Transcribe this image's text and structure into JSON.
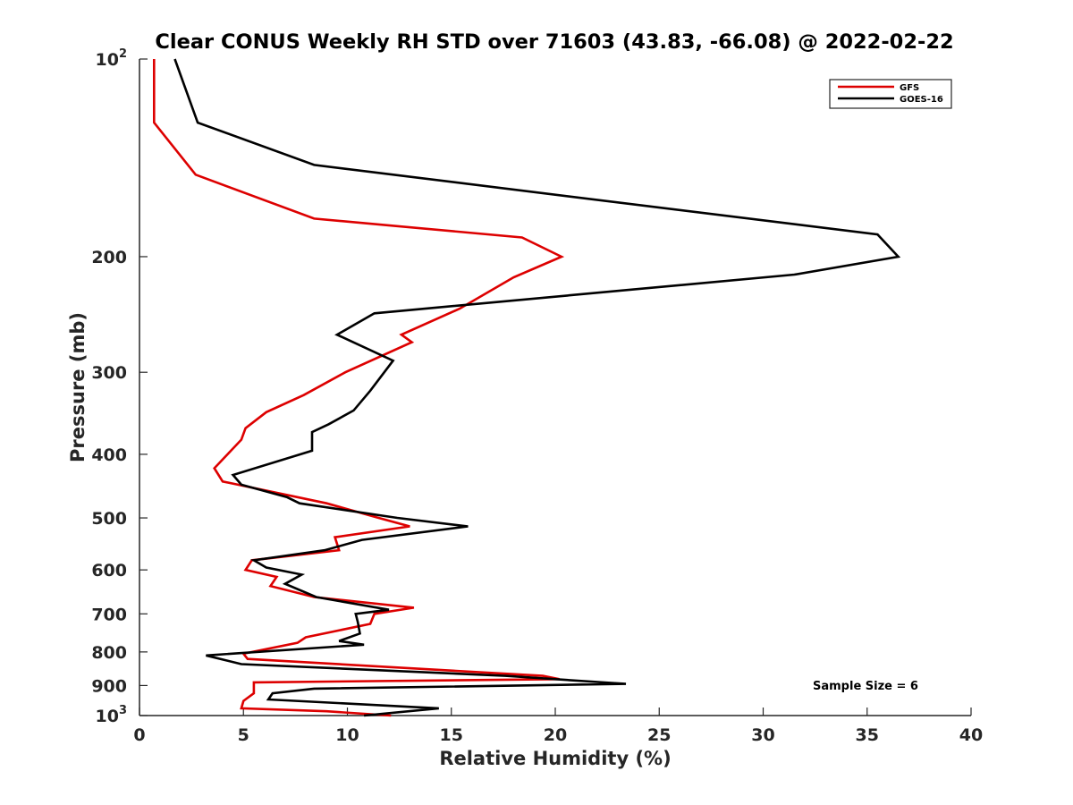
{
  "chart_data": {
    "type": "line",
    "title": "Clear CONUS Weekly RH STD over 71603 (43.83, -66.08) @ 2022-02-22",
    "xlabel": "Relative Humidity (%)",
    "ylabel": "Pressure (mb)",
    "xlim": [
      0,
      40
    ],
    "ylim": [
      100,
      1000
    ],
    "y_scale": "log",
    "y_reversed": true,
    "x_ticks": [
      0,
      5,
      10,
      15,
      20,
      25,
      30,
      35,
      40
    ],
    "x_tick_labels": [
      "0",
      "5",
      "10",
      "15",
      "20",
      "25",
      "30",
      "35",
      "40"
    ],
    "y_ticks": [
      100,
      200,
      300,
      400,
      500,
      600,
      700,
      800,
      900,
      1000
    ],
    "y_tick_labels": [
      {
        "base": "10",
        "exp": "2"
      },
      {
        "base": "200",
        "exp": ""
      },
      {
        "base": "300",
        "exp": ""
      },
      {
        "base": "400",
        "exp": ""
      },
      {
        "base": "500",
        "exp": ""
      },
      {
        "base": "600",
        "exp": ""
      },
      {
        "base": "700",
        "exp": ""
      },
      {
        "base": "800",
        "exp": ""
      },
      {
        "base": "900",
        "exp": ""
      },
      {
        "base": "10",
        "exp": "3"
      }
    ],
    "grid": false,
    "legend_position": "top-right",
    "annotation": "Sample Size = 6",
    "series": [
      {
        "name": "GFS",
        "color": "#dd0000",
        "points": [
          [
            0.7,
            100
          ],
          [
            0.7,
            125
          ],
          [
            2.7,
            150
          ],
          [
            8.4,
            175
          ],
          [
            18.4,
            187
          ],
          [
            20.3,
            200
          ],
          [
            18.0,
            215
          ],
          [
            15.4,
            240
          ],
          [
            12.6,
            263
          ],
          [
            13.1,
            270
          ],
          [
            9.9,
            300
          ],
          [
            7.9,
            325
          ],
          [
            6.1,
            345
          ],
          [
            5.1,
            365
          ],
          [
            4.9,
            380
          ],
          [
            3.6,
            420
          ],
          [
            4.0,
            440
          ],
          [
            9.0,
            475
          ],
          [
            11.5,
            500
          ],
          [
            13.0,
            515
          ],
          [
            9.4,
            535
          ],
          [
            9.6,
            560
          ],
          [
            5.4,
            580
          ],
          [
            5.1,
            600
          ],
          [
            6.6,
            615
          ],
          [
            6.3,
            635
          ],
          [
            8.4,
            660
          ],
          [
            13.2,
            685
          ],
          [
            11.3,
            700
          ],
          [
            11.1,
            725
          ],
          [
            8.0,
            760
          ],
          [
            7.6,
            775
          ],
          [
            5.0,
            805
          ],
          [
            5.2,
            820
          ],
          [
            19.4,
            870
          ],
          [
            20.2,
            880
          ],
          [
            5.5,
            890
          ],
          [
            5.5,
            925
          ],
          [
            5.0,
            950
          ],
          [
            4.9,
            975
          ],
          [
            9.0,
            985
          ],
          [
            12.1,
            1000
          ]
        ]
      },
      {
        "name": "GOES-16",
        "color": "#000000",
        "points": [
          [
            1.7,
            100
          ],
          [
            2.8,
            125
          ],
          [
            8.4,
            145
          ],
          [
            35.5,
            185
          ],
          [
            36.5,
            200
          ],
          [
            31.5,
            213
          ],
          [
            11.3,
            244
          ],
          [
            9.5,
            263
          ],
          [
            12.2,
            288
          ],
          [
            11.1,
            320
          ],
          [
            10.3,
            343
          ],
          [
            9.1,
            360
          ],
          [
            8.3,
            370
          ],
          [
            8.3,
            395
          ],
          [
            4.5,
            430
          ],
          [
            4.9,
            445
          ],
          [
            7.1,
            465
          ],
          [
            7.7,
            475
          ],
          [
            12.4,
            500
          ],
          [
            15.8,
            515
          ],
          [
            10.7,
            540
          ],
          [
            8.9,
            560
          ],
          [
            5.5,
            580
          ],
          [
            6.1,
            595
          ],
          [
            7.8,
            610
          ],
          [
            7.0,
            630
          ],
          [
            8.5,
            660
          ],
          [
            12.0,
            690
          ],
          [
            10.4,
            700
          ],
          [
            10.5,
            720
          ],
          [
            10.6,
            750
          ],
          [
            9.6,
            770
          ],
          [
            10.8,
            780
          ],
          [
            3.2,
            810
          ],
          [
            4.9,
            835
          ],
          [
            17.6,
            870
          ],
          [
            23.4,
            895
          ],
          [
            8.4,
            910
          ],
          [
            6.4,
            925
          ],
          [
            6.2,
            945
          ],
          [
            14.4,
            975
          ],
          [
            10.8,
            1000
          ]
        ]
      }
    ]
  }
}
